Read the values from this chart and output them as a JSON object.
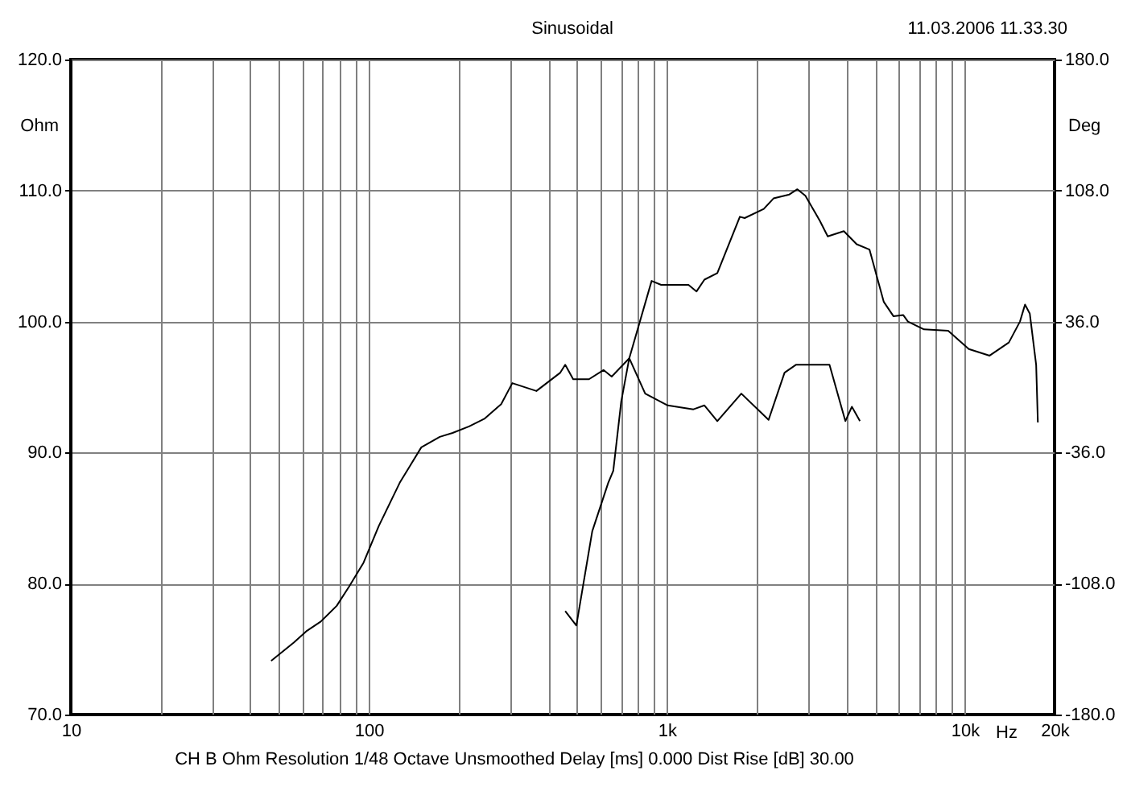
{
  "chart_data": {
    "type": "line",
    "title": "Sinusoidal",
    "xlabel": "Hz",
    "ylabel": "Ohm",
    "y2label": "Deg",
    "log": "x",
    "grid": true,
    "annotations": [
      "11.03.2006 11.33.30",
      "CH B   Ohm   Resolution 1/48 Octave   Unsmoothed   Delay [ms] 0.000   Dist Rise [dB] 30.00"
    ],
    "xlim": [
      10,
      20000
    ],
    "xticks": [
      10,
      {
        "value": 20,
        "label": null
      },
      {
        "value": 30,
        "label": null
      },
      {
        "value": 40,
        "label": null
      },
      {
        "value": 50,
        "label": null
      },
      {
        "value": 60,
        "label": null
      },
      {
        "value": 70,
        "label": null
      },
      {
        "value": 80,
        "label": null
      },
      {
        "value": 90,
        "label": null
      },
      100,
      {
        "value": 200,
        "label": null
      },
      {
        "value": 300,
        "label": null
      },
      {
        "value": 400,
        "label": null
      },
      {
        "value": 500,
        "label": null
      },
      {
        "value": 600,
        "label": null
      },
      {
        "value": 700,
        "label": null
      },
      {
        "value": 800,
        "label": null
      },
      {
        "value": 900,
        "label": null
      },
      {
        "value": 1000,
        "label": "1k"
      },
      {
        "value": 2000,
        "label": null
      },
      {
        "value": 3000,
        "label": null
      },
      {
        "value": 4000,
        "label": null
      },
      {
        "value": 5000,
        "label": null
      },
      {
        "value": 6000,
        "label": null
      },
      {
        "value": 7000,
        "label": null
      },
      {
        "value": 8000,
        "label": null
      },
      {
        "value": 9000,
        "label": null
      },
      {
        "value": 10000,
        "label": "10k"
      },
      {
        "value": 20000,
        "label": "20k"
      }
    ],
    "ylim": [
      70,
      120
    ],
    "yticks": [
      {
        "value": 70,
        "label": "70.0"
      },
      {
        "value": 80,
        "label": "80.0"
      },
      {
        "value": 90,
        "label": "90.0"
      },
      {
        "value": 100,
        "label": "100.0"
      },
      {
        "value": 110,
        "label": "110.0"
      },
      {
        "value": 120,
        "label": "120.0"
      }
    ],
    "y2lim": [
      -180,
      180
    ],
    "y2ticks": [
      {
        "value": -180,
        "label": "-180.0"
      },
      {
        "value": -108,
        "label": "-108.0"
      },
      {
        "value": -36,
        "label": "-36.0"
      },
      {
        "value": 36,
        "label": "36.0"
      },
      {
        "value": 108,
        "label": "108.0"
      },
      {
        "value": 180,
        "label": "180.0"
      }
    ],
    "series": [
      {
        "color": "#000000",
        "x": [
          47,
          56,
          62,
          69,
          78,
          86,
          96,
          108,
          127,
          150,
          173,
          191,
          217,
          245,
          278,
          303,
          365,
          439,
          456,
          485,
          548,
          613,
          653,
          748,
          846,
          1007,
          1228,
          1337,
          1477,
          1778,
          2195,
          2483,
          2710,
          3514,
          3973,
          4178,
          4446
        ],
        "values": [
          74.1,
          75.5,
          76.4,
          77.1,
          78.3,
          79.8,
          81.6,
          84.4,
          87.7,
          90.4,
          91.2,
          91.5,
          92.0,
          92.6,
          93.7,
          95.3,
          94.7,
          96.1,
          96.7,
          95.6,
          95.6,
          96.3,
          95.8,
          97.2,
          94.5,
          93.6,
          93.3,
          93.6,
          92.4,
          94.5,
          92.5,
          96.1,
          96.7,
          96.7,
          92.4,
          93.5,
          92.4
        ]
      },
      {
        "color": "#000000",
        "x": [
          456,
          497,
          562,
          636,
          661,
          703,
          748,
          889,
          957,
          1182,
          1258,
          1337,
          1477,
          1758,
          1824,
          2115,
          2280,
          2577,
          2742,
          2917,
          3260,
          3467,
          3926,
          4335,
          4786,
          5346,
          5765,
          6209,
          6442,
          7295,
          8790,
          10310,
          12110,
          14050,
          15310,
          15920,
          16520,
          17350,
          17580
        ],
        "values": [
          77.9,
          76.8,
          84.0,
          87.7,
          88.6,
          93.9,
          97.2,
          103.1,
          102.8,
          102.8,
          102.3,
          103.2,
          103.7,
          108.0,
          107.9,
          108.6,
          109.4,
          109.7,
          110.1,
          109.6,
          107.7,
          106.5,
          106.9,
          105.9,
          105.5,
          101.5,
          100.4,
          100.5,
          100.0,
          99.4,
          99.3,
          97.9,
          97.4,
          98.4,
          100.0,
          101.3,
          100.6,
          96.7,
          92.3
        ]
      }
    ]
  }
}
